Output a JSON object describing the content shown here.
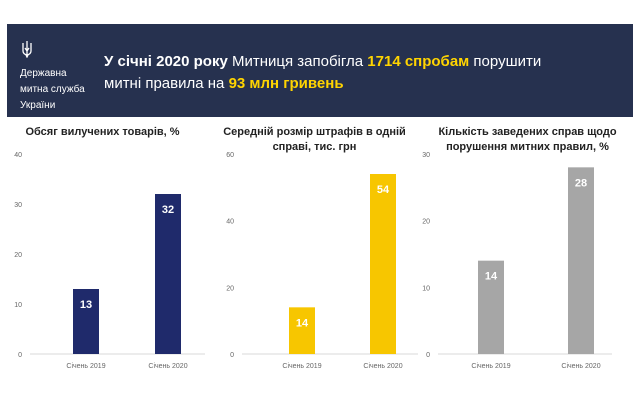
{
  "header": {
    "agency_lines": [
      "Державна",
      "митна служба",
      "України"
    ],
    "headline": {
      "p1": "У січні 2020 року",
      "p2": " Митниця запобігла ",
      "p3": "1714 спробам",
      "p4": " порушити",
      "p5": "митні правила на ",
      "p6": "93 млн гривень"
    }
  },
  "colors": {
    "header_bg": "#26314f",
    "highlight": "#ffd400"
  },
  "chart_data": [
    {
      "type": "bar",
      "title": "Обсяг вилучених товарів, %",
      "categories": [
        "Січень 2019",
        "Січень 2020"
      ],
      "values": [
        13,
        32
      ],
      "yticks": [
        0,
        10,
        20,
        30,
        40
      ],
      "ylim": [
        0,
        40
      ],
      "color": "#1f2a6b"
    },
    {
      "type": "bar",
      "title": "Середній розмір штрафів в одній справі, тис. грн",
      "categories": [
        "Січень 2019",
        "Січень 2020"
      ],
      "values": [
        14,
        54
      ],
      "yticks": [
        0,
        20,
        40,
        60
      ],
      "ylim": [
        0,
        60
      ],
      "color": "#f7c600"
    },
    {
      "type": "bar",
      "title": "Кількість заведених справ щодо порушення митних правил, %",
      "categories": [
        "Січень 2019",
        "Січень 2020"
      ],
      "values": [
        14,
        28
      ],
      "yticks": [
        0,
        10,
        20,
        30
      ],
      "ylim": [
        0,
        30
      ],
      "color": "#a6a6a6"
    }
  ]
}
